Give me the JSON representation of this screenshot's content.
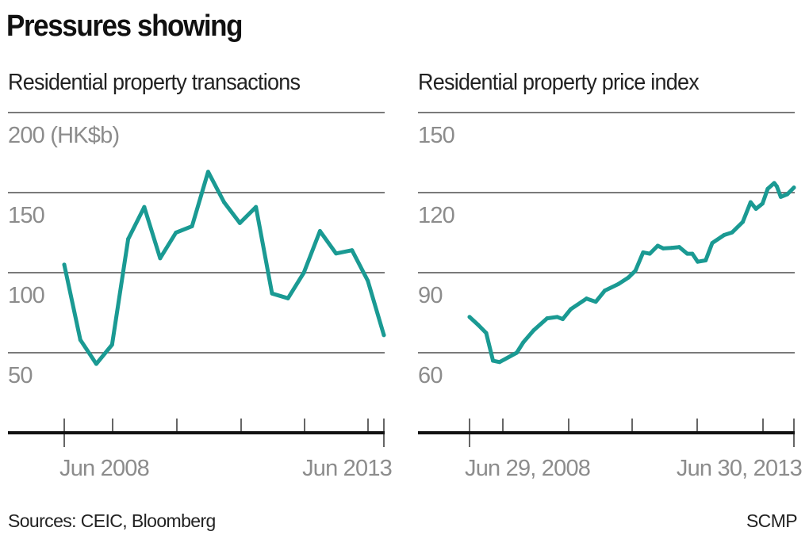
{
  "title": "Pressures showing",
  "footer": {
    "source": "Sources: CEIC, Bloomberg",
    "credit": "SCMP"
  },
  "colors": {
    "line": "#1a9a93",
    "grid": "#7a7a7a",
    "tick_label": "#8c8c8c",
    "axis": "#111111"
  },
  "chart_data": [
    {
      "type": "line",
      "title": "Residential property transactions",
      "unit_label": "200 (HK$b)",
      "ylim": [
        0,
        200
      ],
      "yticks": [
        200,
        150,
        100,
        50
      ],
      "ytick_labels": [
        "200 (HK$b)",
        "150",
        "100",
        "50"
      ],
      "xlim": [
        "2008-06",
        "2013-06"
      ],
      "xtick_labels": [
        "Jun 2008",
        "Jun 2013"
      ],
      "grid": true,
      "x": [
        "2008-06",
        "2008-09",
        "2008-12",
        "2009-03",
        "2009-06",
        "2009-09",
        "2009-12",
        "2010-03",
        "2010-06",
        "2010-09",
        "2010-12",
        "2011-03",
        "2011-06",
        "2011-09",
        "2011-12",
        "2012-03",
        "2012-06",
        "2012-09",
        "2012-12",
        "2013-03",
        "2013-06"
      ],
      "values": [
        105,
        58,
        43,
        55,
        121,
        141,
        109,
        125,
        129,
        163,
        144,
        131,
        141,
        87,
        84,
        100,
        126,
        112,
        114,
        95,
        61
      ]
    },
    {
      "type": "line",
      "title": "Residential property price index",
      "ylim": [
        30,
        150
      ],
      "yticks": [
        150,
        120,
        90,
        60
      ],
      "ytick_labels": [
        "150",
        "120",
        "90",
        "60"
      ],
      "xlim": [
        "2008-06-29",
        "2013-06-30"
      ],
      "xtick_labels": [
        "Jun 29, 2008",
        "Jun 30, 2013"
      ],
      "grid": true,
      "x": [
        "2008-06-29",
        "2008-08-17",
        "2008-10-01",
        "2008-11-08",
        "2008-12-15",
        "2009-03-22",
        "2009-04-28",
        "2009-06-25",
        "2009-09-09",
        "2009-11-05",
        "2009-12-06",
        "2010-01-20",
        "2010-04-19",
        "2010-06-10",
        "2010-07-31",
        "2010-10-14",
        "2010-12-11",
        "2011-01-19",
        "2011-03-04",
        "2011-04-10",
        "2011-05-25",
        "2011-06-25",
        "2011-08-09",
        "2011-09-23",
        "2011-11-07",
        "2011-12-06",
        "2012-01-05",
        "2012-02-19",
        "2012-03-27",
        "2012-06-02",
        "2012-07-17",
        "2012-09-15",
        "2012-10-29",
        "2012-11-28",
        "2013-01-04",
        "2013-02-02",
        "2013-03-11",
        "2013-03-26",
        "2013-04-17",
        "2013-05-24",
        "2013-06-30"
      ],
      "values": [
        73.4,
        70.4,
        67.4,
        57.0,
        56.5,
        60.0,
        63.9,
        68.4,
        72.9,
        73.4,
        72.6,
        76.3,
        80.3,
        79.1,
        83.3,
        85.7,
        88.2,
        90.7,
        97.6,
        97.1,
        100.1,
        99.1,
        99.3,
        99.6,
        97.1,
        97.1,
        94.1,
        94.6,
        101.1,
        104.1,
        105.1,
        109.0,
        116.4,
        113.9,
        115.9,
        121.4,
        123.6,
        122.3,
        118.4,
        119.4,
        121.9
      ]
    }
  ]
}
